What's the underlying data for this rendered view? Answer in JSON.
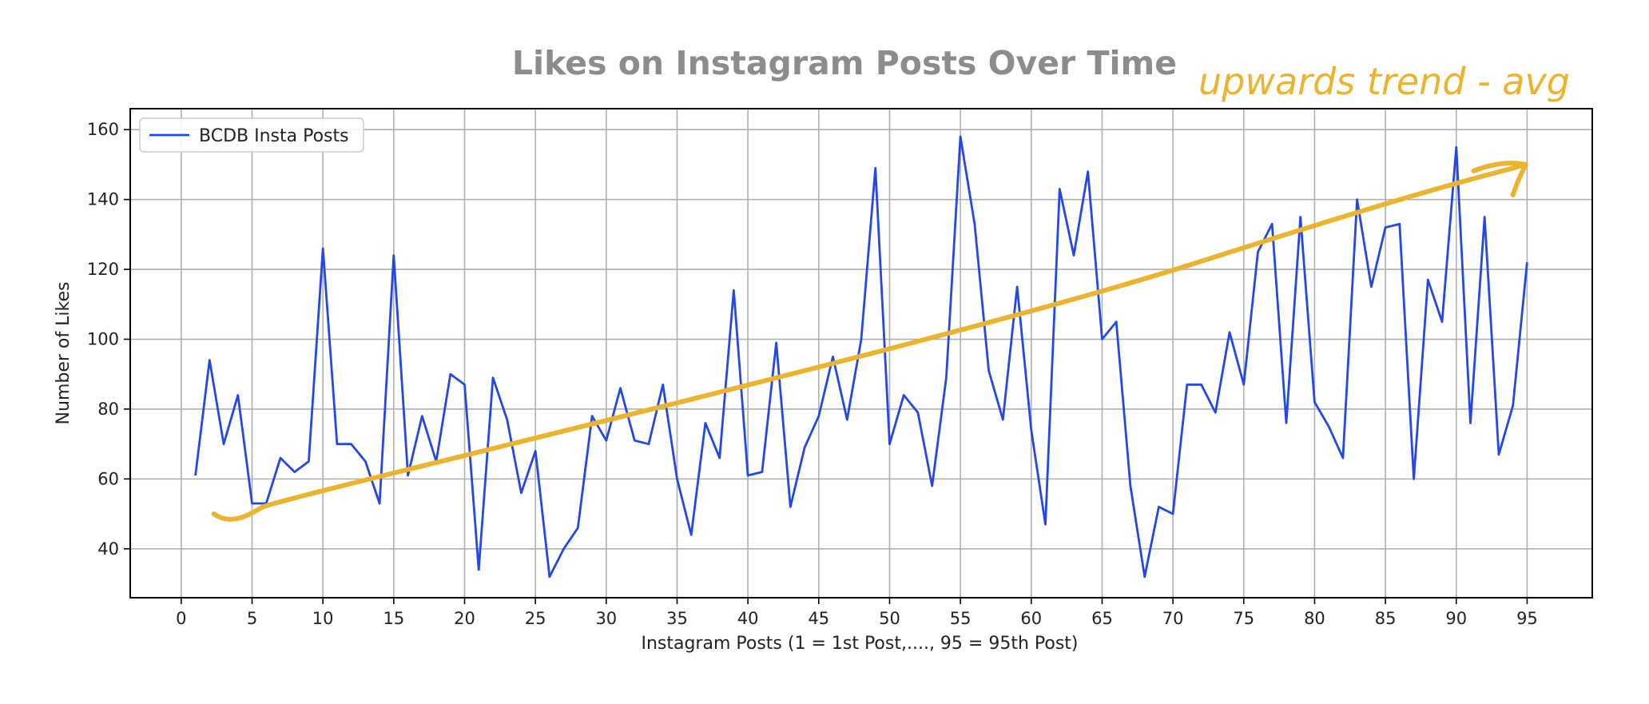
{
  "chart_data": {
    "type": "line",
    "title": "Likes on Instagram Posts Over Time",
    "xlabel": "Instagram Posts (1 = 1st Post,...., 95 = 95th Post)",
    "ylabel": "Number of Likes",
    "xlim": [
      -3.6,
      99.6
    ],
    "ylim": [
      26,
      166
    ],
    "xticks": [
      0,
      5,
      10,
      15,
      20,
      25,
      30,
      35,
      40,
      45,
      50,
      55,
      60,
      65,
      70,
      75,
      80,
      85,
      90,
      95
    ],
    "yticks": [
      40,
      60,
      80,
      100,
      120,
      140,
      160
    ],
    "grid": true,
    "legend": {
      "position": "top-left",
      "entries": [
        "BCDB Insta Posts"
      ]
    },
    "series": [
      {
        "name": "BCDB Insta Posts",
        "color": "#2347e8",
        "x": [
          1,
          2,
          3,
          4,
          5,
          6,
          7,
          8,
          9,
          10,
          11,
          12,
          13,
          14,
          15,
          16,
          17,
          18,
          19,
          20,
          21,
          22,
          23,
          24,
          25,
          26,
          27,
          28,
          29,
          30,
          31,
          32,
          33,
          34,
          35,
          36,
          37,
          38,
          39,
          40,
          41,
          42,
          43,
          44,
          45,
          46,
          47,
          48,
          49,
          50,
          51,
          52,
          53,
          54,
          55,
          56,
          57,
          58,
          59,
          60,
          61,
          62,
          63,
          64,
          65,
          66,
          67,
          68,
          69,
          70,
          71,
          72,
          73,
          74,
          75,
          76,
          77,
          78,
          79,
          80,
          81,
          82,
          83,
          84,
          85,
          86,
          87,
          88,
          89,
          90,
          91,
          92,
          93,
          94,
          95
        ],
        "y": [
          61,
          94,
          70,
          84,
          53,
          53,
          66,
          62,
          65,
          126,
          70,
          70,
          65,
          53,
          124,
          61,
          78,
          65,
          90,
          87,
          34,
          89,
          77,
          56,
          68,
          32,
          40,
          46,
          78,
          71,
          86,
          71,
          70,
          87,
          60,
          44,
          76,
          66,
          114,
          61,
          62,
          99,
          52,
          69,
          78,
          95,
          77,
          100,
          149,
          70,
          84,
          79,
          58,
          89,
          158,
          133,
          91,
          77,
          115,
          74,
          47,
          143,
          124,
          148,
          100,
          105,
          58,
          32,
          52,
          50,
          87,
          87,
          79,
          102,
          87,
          125,
          133,
          76,
          135,
          82,
          75,
          66,
          140,
          115,
          132,
          133,
          60,
          117,
          105,
          155,
          76,
          135,
          67,
          81,
          122
        ]
      }
    ],
    "annotations": [
      {
        "text": "upwards trend - avg",
        "color": "#eab430",
        "trend_from": [
          2.3,
          50
        ],
        "trend_to": [
          94.9,
          150
        ]
      }
    ]
  }
}
